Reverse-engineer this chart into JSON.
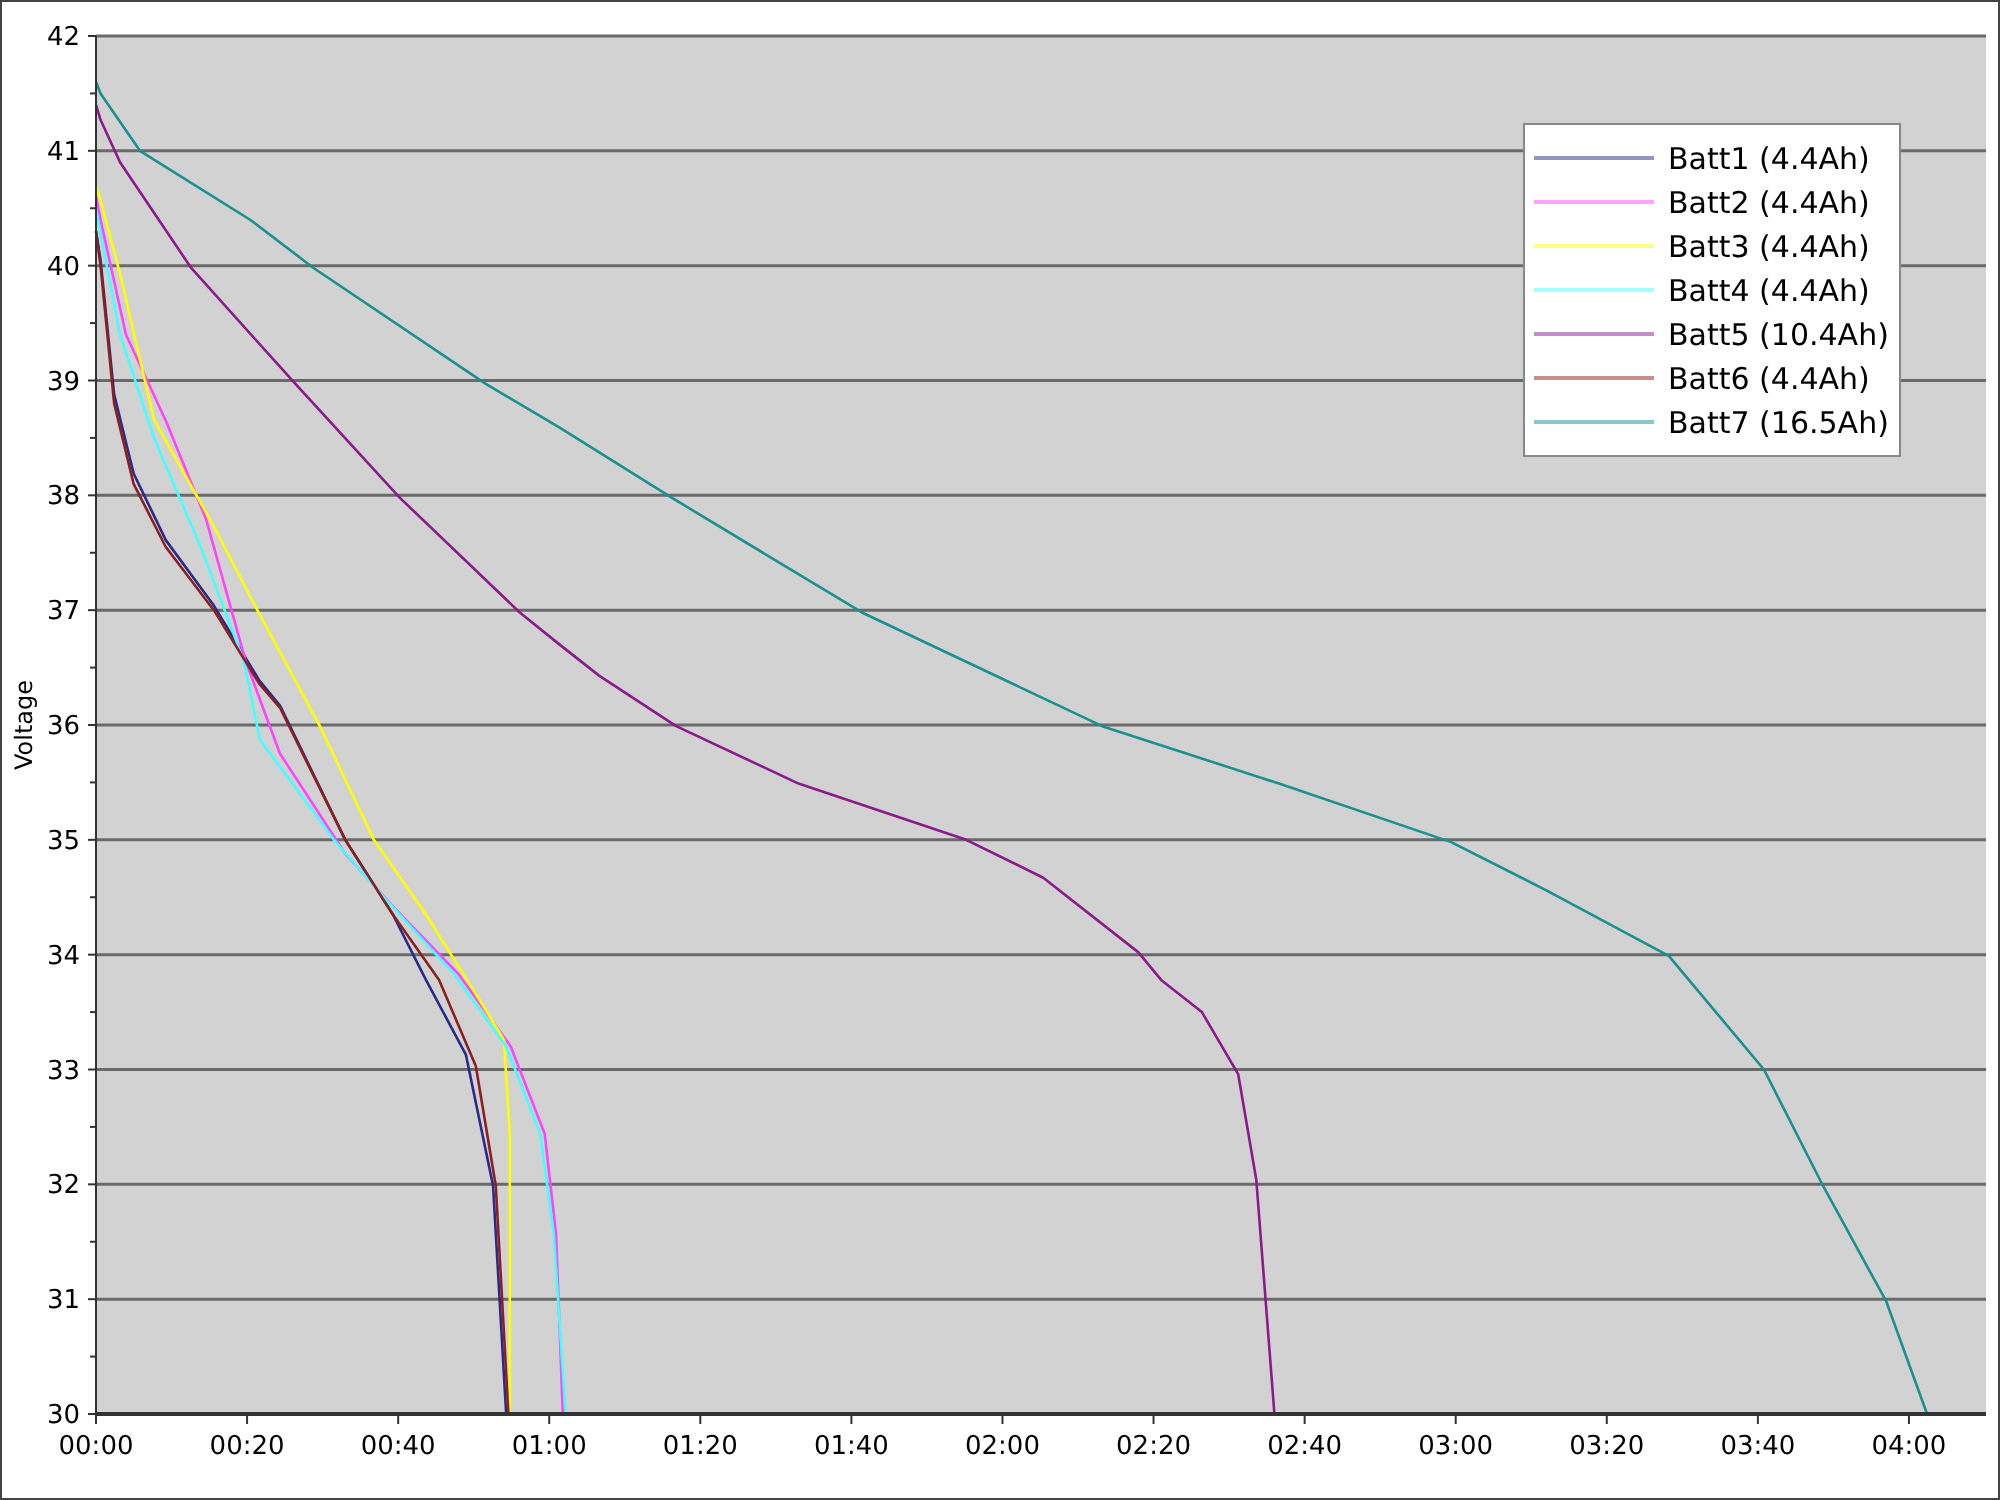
{
  "chart_data": {
    "type": "line",
    "ylabel": "Voltage",
    "xlim": [
      0,
      4.17
    ],
    "ylim": [
      30,
      42
    ],
    "xticks": [
      {
        "value": 0,
        "label": "00:00"
      },
      {
        "value": 0.3333,
        "label": "00:20"
      },
      {
        "value": 0.6667,
        "label": "00:40"
      },
      {
        "value": 1,
        "label": "01:00"
      },
      {
        "value": 1.3333,
        "label": "01:20"
      },
      {
        "value": 1.6667,
        "label": "01:40"
      },
      {
        "value": 2,
        "label": "02:00"
      },
      {
        "value": 2.3333,
        "label": "02:20"
      },
      {
        "value": 2.6667,
        "label": "02:40"
      },
      {
        "value": 3,
        "label": "03:00"
      },
      {
        "value": 3.3333,
        "label": "03:20"
      },
      {
        "value": 3.6667,
        "label": "03:40"
      },
      {
        "value": 4,
        "label": "04:00"
      }
    ],
    "yticks": [
      30,
      31,
      32,
      33,
      34,
      35,
      36,
      37,
      38,
      39,
      40,
      41,
      42
    ],
    "grid": "y",
    "legend": "top right",
    "marker": "none",
    "line_style": "solid",
    "series": [
      {
        "name": "Batt1 (4.4Ah)",
        "color": "#2a2a8a",
        "x": [
          0,
          0.01,
          0.04,
          0.083,
          0.154,
          0.26,
          0.36,
          0.406,
          0.55,
          0.655,
          0.728,
          0.816,
          0.876,
          0.905
        ],
        "values": [
          40.3,
          40.05,
          38.88,
          38.19,
          37.61,
          37.04,
          36.39,
          36.17,
          35.0,
          34.35,
          33.78,
          33.13,
          31.99,
          30.0
        ]
      },
      {
        "name": "Batt2 (4.4Ah)",
        "color": "#ff44ff",
        "x": [
          0,
          0.01,
          0.066,
          0.154,
          0.243,
          0.33,
          0.406,
          0.55,
          0.655,
          0.8,
          0.915,
          0.99,
          1.015,
          1.03
        ],
        "values": [
          40.6,
          40.4,
          39.4,
          38.65,
          37.79,
          36.56,
          35.75,
          34.88,
          34.42,
          33.83,
          33.2,
          32.44,
          31.57,
          30.0
        ]
      },
      {
        "name": "Batt3 (4.4Ah)",
        "color": "#ffff00",
        "x": [
          0,
          0.01,
          0.053,
          0.128,
          0.26,
          0.36,
          0.494,
          0.613,
          0.728,
          0.847,
          0.9,
          0.913,
          0.913
        ],
        "values": [
          40.7,
          40.57,
          39.93,
          38.66,
          37.73,
          36.97,
          35.99,
          35.0,
          34.35,
          33.6,
          33.26,
          32.44,
          30.0
        ]
      },
      {
        "name": "Batt4 (4.4Ah)",
        "color": "#44ffff",
        "x": [
          0,
          0.01,
          0.053,
          0.128,
          0.23,
          0.326,
          0.362,
          0.525,
          0.64,
          0.79,
          0.905,
          0.98,
          1.01,
          1.036
        ],
        "values": [
          40.5,
          40.28,
          39.4,
          38.5,
          37.56,
          36.56,
          35.87,
          35.0,
          34.48,
          33.83,
          33.2,
          32.44,
          31.57,
          30.0
        ]
      },
      {
        "name": "Batt5 (10.4Ah)",
        "color": "#8b1a8b",
        "x": [
          0,
          0.01,
          0.053,
          0.21,
          0.44,
          0.67,
          0.935,
          1.023,
          1.11,
          1.28,
          1.55,
          1.92,
          2.09,
          2.3,
          2.35,
          2.44,
          2.52,
          2.56,
          2.6
        ],
        "values": [
          41.4,
          41.27,
          40.9,
          39.98,
          38.97,
          37.98,
          36.98,
          36.7,
          36.43,
          35.99,
          35.49,
          35.0,
          34.67,
          34.02,
          33.78,
          33.5,
          32.96,
          32.04,
          30.0
        ]
      },
      {
        "name": "Batt6 (4.4Ah)",
        "color": "#8b2020",
        "x": [
          0,
          0.01,
          0.04,
          0.083,
          0.154,
          0.26,
          0.36,
          0.406,
          0.55,
          0.655,
          0.757,
          0.838,
          0.882,
          0.91
        ],
        "values": [
          40.3,
          40.0,
          38.8,
          38.1,
          37.55,
          37.0,
          36.36,
          36.15,
          35.0,
          34.35,
          33.78,
          33.03,
          31.99,
          30.0
        ]
      },
      {
        "name": "Batt7 (16.5Ah)",
        "color": "#1a9090",
        "x": [
          0,
          0.01,
          0.097,
          0.34,
          0.48,
          0.86,
          1.023,
          1.27,
          1.69,
          2.22,
          2.61,
          2.99,
          3.2,
          3.47,
          3.68,
          3.81,
          3.95,
          4.04
        ],
        "values": [
          41.6,
          41.5,
          41.0,
          40.4,
          39.98,
          38.97,
          38.59,
          37.98,
          36.98,
          35.99,
          35.49,
          34.98,
          34.56,
          33.99,
          33.0,
          31.99,
          30.98,
          30.0
        ]
      }
    ]
  }
}
